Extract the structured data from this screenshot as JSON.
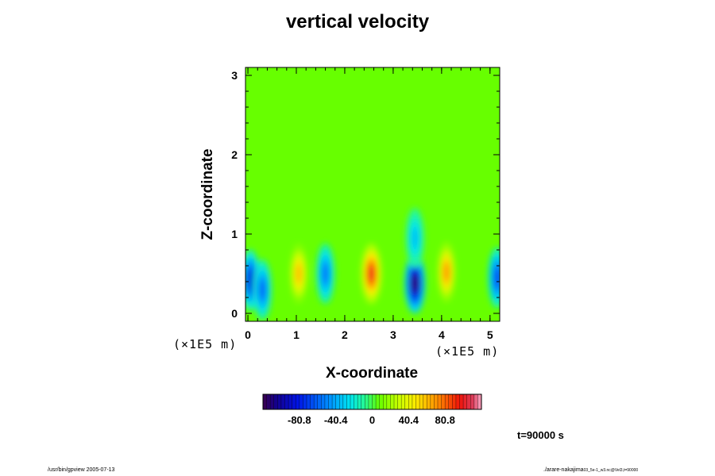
{
  "chart_data": {
    "type": "heatmap",
    "title": "vertical velocity",
    "xlabel": "X-coordinate",
    "ylabel": "Z-coordinate",
    "x_unit": "(×1E5 m)",
    "z_unit": "(×1E5 m)",
    "xlim": [
      -0.05,
      5.2
    ],
    "ylim": [
      -0.1,
      3.1
    ],
    "x_ticks": [
      "0",
      "1",
      "2",
      "3",
      "4",
      "5"
    ],
    "x_tick_values": [
      0,
      1,
      2,
      3,
      4,
      5
    ],
    "y_ticks": [
      "0",
      "1",
      "2",
      "3"
    ],
    "y_tick_values": [
      0,
      1,
      2,
      3
    ],
    "colorbar": {
      "range": [
        -121.2,
        121.2
      ],
      "tick_labels": [
        "-80.8",
        "-40.4",
        "0",
        "40.4",
        "80.8"
      ],
      "tick_values": [
        -80.8,
        -40.4,
        0,
        40.4,
        80.8
      ]
    },
    "features": [
      {
        "x": 0.05,
        "z": 0.42,
        "value": -85
      },
      {
        "x": 0.3,
        "z": 0.3,
        "value": -60
      },
      {
        "x": 1.05,
        "z": 0.5,
        "value": 60
      },
      {
        "x": 1.6,
        "z": 0.5,
        "value": -55
      },
      {
        "x": 2.55,
        "z": 0.5,
        "value": 95
      },
      {
        "x": 3.45,
        "z": 0.38,
        "value": -115
      },
      {
        "x": 4.1,
        "z": 0.52,
        "value": 70
      },
      {
        "x": 5.15,
        "z": 0.45,
        "value": -70
      },
      {
        "x": 3.45,
        "z": 0.95,
        "value": -35
      }
    ]
  },
  "time_label": "t=90000 s",
  "footer_left": "/usr/bin/gpview 2005-07-13",
  "footer_right_main": "./arare-nakajima",
  "footer_right_sub": "03_5e-1_w3.nc@Vel3,t=90000",
  "colors": {
    "background": "#ffffff",
    "axis": "#000000"
  }
}
